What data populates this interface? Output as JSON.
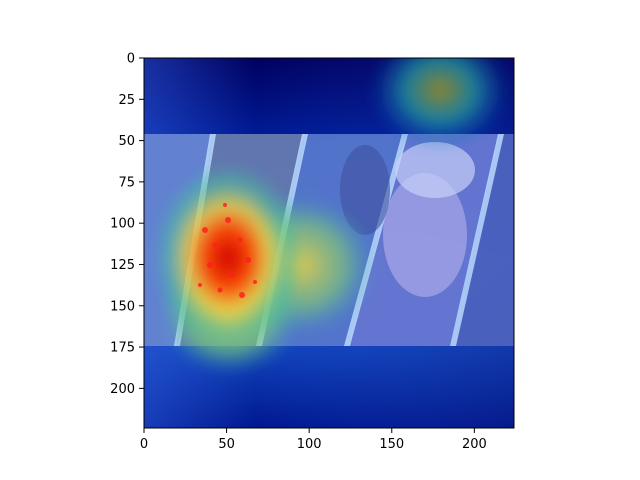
{
  "chart_data": {
    "type": "heatmap",
    "description_kind": "image-with-heatmap-overlay",
    "title": "",
    "xlabel": "",
    "ylabel": "",
    "xlim": [
      0,
      224
    ],
    "ylim": [
      224,
      0
    ],
    "x_ticks": [
      0,
      50,
      100,
      150,
      200
    ],
    "y_ticks": [
      0,
      25,
      50,
      75,
      100,
      125,
      150,
      175,
      200
    ],
    "colormap": "jet",
    "grid": false,
    "legend": "none",
    "hotspots": [
      {
        "x": 50,
        "y": 120,
        "intensity": 1.0
      },
      {
        "x": 55,
        "y": 150,
        "intensity": 0.75
      },
      {
        "x": 95,
        "y": 130,
        "intensity": 0.55
      },
      {
        "x": 180,
        "y": 30,
        "intensity": 0.5
      }
    ],
    "colors": {
      "deep_blue": "#00007a",
      "blue": "#1030c8",
      "teal": "#10a0a0",
      "yellow": "#f0e040",
      "red": "#e02010"
    }
  }
}
